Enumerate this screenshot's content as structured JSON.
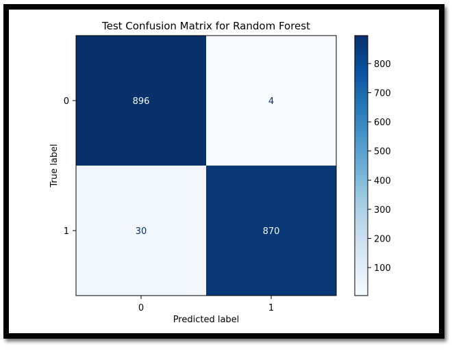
{
  "chart_data": {
    "type": "heatmap",
    "title": "Test Confusion Matrix for Random Forest",
    "xlabel": "Predicted label",
    "ylabel": "True label",
    "x_categories": [
      "0",
      "1"
    ],
    "y_categories": [
      "0",
      "1"
    ],
    "matrix": [
      [
        896,
        4
      ],
      [
        30,
        870
      ]
    ],
    "colormap": "Blues",
    "colorbar": {
      "range": [
        4,
        896
      ],
      "ticks": [
        100,
        200,
        300,
        400,
        500,
        600,
        700,
        800
      ],
      "tick_labels": [
        "100",
        "200",
        "300",
        "400",
        "500",
        "600",
        "700",
        "800"
      ]
    },
    "colors": {
      "low": "#f7fbff",
      "high": "#08306b",
      "text_on_dark": "#f7fbff",
      "text_on_light": "#08306b"
    }
  }
}
